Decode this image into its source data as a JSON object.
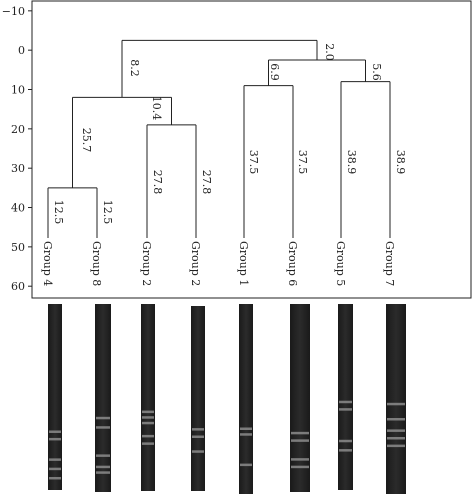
{
  "axis": {
    "ticks": [
      "−10",
      "0",
      "10",
      "20",
      "30",
      "40",
      "50",
      "60"
    ],
    "tick_values": [
      -10,
      0,
      10,
      20,
      30,
      40,
      50,
      60
    ],
    "range": [
      -12.5,
      63
    ]
  },
  "leaves": [
    {
      "id": "L1",
      "label": "Group 4"
    },
    {
      "id": "L2",
      "label": "Group 8"
    },
    {
      "id": "L3",
      "label": "Group 2"
    },
    {
      "id": "L4",
      "label": "Group 2"
    },
    {
      "id": "L5",
      "label": "Group 1"
    },
    {
      "id": "L6",
      "label": "Group 6"
    },
    {
      "id": "L7",
      "label": "Group 5"
    },
    {
      "id": "L8",
      "label": "Group 7"
    }
  ],
  "nodes": [
    {
      "id": "A",
      "height": 35,
      "children": [
        "L1",
        "L2"
      ]
    },
    {
      "id": "B",
      "height": 19,
      "children": [
        "L3",
        "L4"
      ]
    },
    {
      "id": "C",
      "height": 12,
      "children": [
        "A",
        "B"
      ]
    },
    {
      "id": "D",
      "height": 9,
      "children": [
        "L5",
        "L6"
      ]
    },
    {
      "id": "E",
      "height": 8,
      "children": [
        "L7",
        "L8"
      ]
    },
    {
      "id": "F",
      "height": 2.5,
      "children": [
        "D",
        "E"
      ]
    },
    {
      "id": "G",
      "height": -2.5,
      "children": [
        "C",
        "F"
      ]
    }
  ],
  "branch_labels": [
    {
      "text": "8.2"
    },
    {
      "text": "2.0"
    },
    {
      "text": "10.4"
    },
    {
      "text": "25.7"
    },
    {
      "text": "12.5"
    },
    {
      "text": "12.5"
    },
    {
      "text": "27.8"
    },
    {
      "text": "27.8"
    },
    {
      "text": "6.9"
    },
    {
      "text": "5.6"
    },
    {
      "text": "37.5"
    },
    {
      "text": "37.5"
    },
    {
      "text": "38.9"
    },
    {
      "text": "38.9"
    }
  ],
  "gel_lanes": [
    {
      "lane": 1,
      "bands": [
        0.68,
        0.72,
        0.83,
        0.88,
        0.93
      ]
    },
    {
      "lane": 2,
      "bands": [
        0.6,
        0.65,
        0.8,
        0.86,
        0.89
      ]
    },
    {
      "lane": 3,
      "bands": [
        0.57,
        0.6,
        0.63,
        0.7,
        0.74
      ]
    },
    {
      "lane": 4,
      "bands": [
        0.66,
        0.7,
        0.78
      ]
    },
    {
      "lane": 5,
      "bands": [
        0.65,
        0.68,
        0.84
      ]
    },
    {
      "lane": 6,
      "bands": [
        0.68,
        0.72,
        0.82,
        0.86
      ]
    },
    {
      "lane": 7,
      "bands": [
        0.52,
        0.56,
        0.73,
        0.78
      ]
    },
    {
      "lane": 8,
      "bands": [
        0.52,
        0.6,
        0.66,
        0.7,
        0.74
      ]
    }
  ]
}
